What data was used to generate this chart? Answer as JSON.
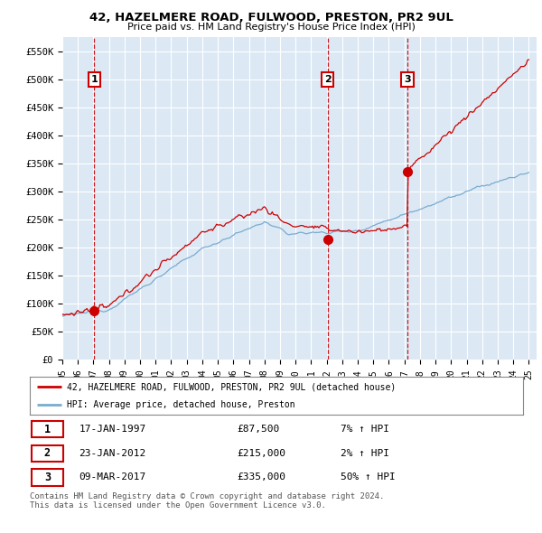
{
  "title": "42, HAZELMERE ROAD, FULWOOD, PRESTON, PR2 9UL",
  "subtitle": "Price paid vs. HM Land Registry's House Price Index (HPI)",
  "ylim": [
    0,
    575000
  ],
  "yticks": [
    0,
    50000,
    100000,
    150000,
    200000,
    250000,
    300000,
    350000,
    400000,
    450000,
    500000,
    550000
  ],
  "ytick_labels": [
    "£0",
    "£50K",
    "£100K",
    "£150K",
    "£200K",
    "£250K",
    "£300K",
    "£350K",
    "£400K",
    "£450K",
    "£500K",
    "£550K"
  ],
  "x_start_year": 1995,
  "x_end_year": 2025,
  "transactions": [
    {
      "date": 1997.05,
      "price": 87500,
      "label": "1"
    },
    {
      "date": 2012.07,
      "price": 215000,
      "label": "2"
    },
    {
      "date": 2017.19,
      "price": 335000,
      "label": "3"
    }
  ],
  "red_line_color": "#cc0000",
  "blue_line_color": "#7aabcf",
  "plot_bg_color": "#dce9f5",
  "grid_color": "#ffffff",
  "legend_label_red": "42, HAZELMERE ROAD, FULWOOD, PRESTON, PR2 9UL (detached house)",
  "legend_label_blue": "HPI: Average price, detached house, Preston",
  "table_rows": [
    {
      "num": "1",
      "date": "17-JAN-1997",
      "price": "£87,500",
      "hpi": "7% ↑ HPI"
    },
    {
      "num": "2",
      "date": "23-JAN-2012",
      "price": "£215,000",
      "hpi": "2% ↑ HPI"
    },
    {
      "num": "3",
      "date": "09-MAR-2017",
      "price": "£335,000",
      "hpi": "50% ↑ HPI"
    }
  ],
  "footer": "Contains HM Land Registry data © Crown copyright and database right 2024.\nThis data is licensed under the Open Government Licence v3.0."
}
